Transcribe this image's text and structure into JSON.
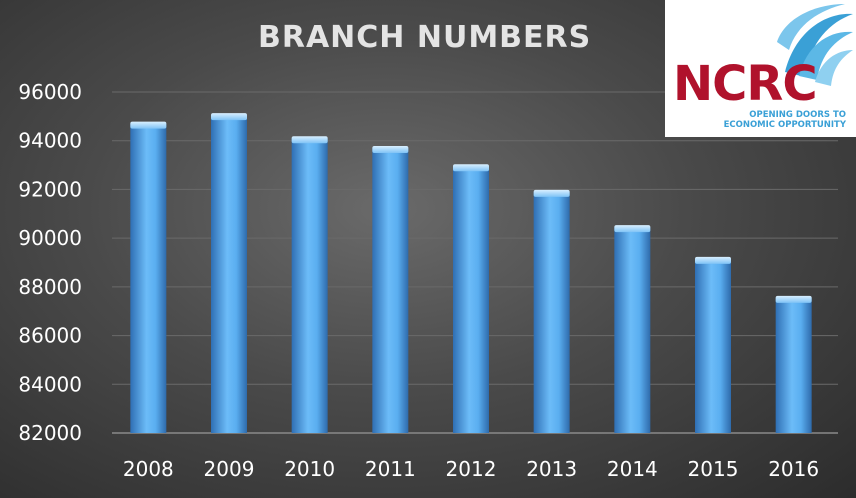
{
  "chart_data": {
    "type": "bar",
    "title": "BRANCH NUMBERS",
    "categories": [
      "2008",
      "2009",
      "2010",
      "2011",
      "2012",
      "2013",
      "2014",
      "2015",
      "2016"
    ],
    "values": [
      94700,
      95050,
      94100,
      93700,
      92950,
      91900,
      90450,
      89150,
      87550
    ],
    "ylim": [
      82000,
      96000
    ],
    "yticks": [
      "82000",
      "84000",
      "86000",
      "88000",
      "90000",
      "92000",
      "94000",
      "96000"
    ],
    "grid": true,
    "legend": "none",
    "bar_color": "#5aaef0"
  },
  "logo": {
    "wordmark": "NCRC",
    "tagline": "OPENING DOORS TO ECONOMIC OPPORTUNITY",
    "color": "#b0122c",
    "accent": "#3aa0d6"
  }
}
